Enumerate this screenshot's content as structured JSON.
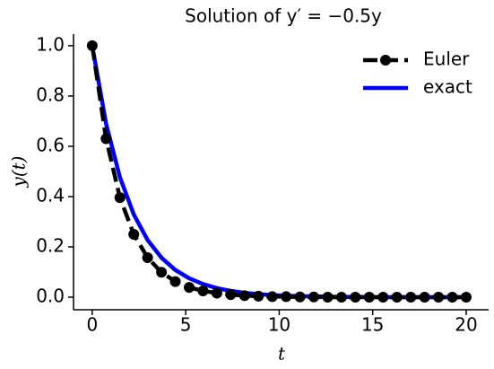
{
  "chart_data": {
    "type": "line",
    "title": "Solution of y′ = −0.5y",
    "xlabel": "t",
    "ylabel": "y(t)",
    "x": [
      0,
      0.741,
      1.481,
      2.222,
      2.963,
      3.704,
      4.444,
      5.185,
      5.926,
      6.667,
      7.407,
      8.148,
      8.889,
      9.63,
      10.37,
      11.111,
      11.852,
      12.593,
      13.333,
      14.074,
      14.815,
      15.556,
      16.296,
      17.037,
      17.778,
      18.519,
      19.259,
      20
    ],
    "series": [
      {
        "name": "Euler",
        "color": "#000000",
        "dashed": true,
        "markers": true,
        "values": [
          1,
          0.63,
          0.396,
          0.25,
          0.157,
          0.099,
          0.062,
          0.039,
          0.025,
          0.016,
          0.01,
          0.006,
          0.004,
          0.002,
          0.002,
          0.001,
          0.001,
          0,
          0,
          0,
          0,
          0,
          0,
          0,
          0,
          0,
          0,
          0
        ]
      },
      {
        "name": "exact",
        "color": "#0000ff",
        "dashed": false,
        "markers": false,
        "values": [
          1,
          0.69,
          0.477,
          0.329,
          0.227,
          0.157,
          0.108,
          0.075,
          0.052,
          0.036,
          0.025,
          0.017,
          0.012,
          0.008,
          0.006,
          0.004,
          0.003,
          0.002,
          0.001,
          0.001,
          0.001,
          0,
          0,
          0,
          0,
          0,
          0,
          0
        ]
      }
    ],
    "xlim": [
      -1,
      21.2
    ],
    "ylim": [
      -0.05,
      1.046
    ],
    "xticks": [
      0,
      5,
      10,
      15,
      20
    ],
    "yticks": [
      {
        "value": 0,
        "label": "0.0"
      },
      {
        "value": 0.2,
        "label": "0.2"
      },
      {
        "value": 0.4,
        "label": "0.4"
      },
      {
        "value": 0.6,
        "label": "0.6"
      },
      {
        "value": 0.8,
        "label": "0.8"
      },
      {
        "value": 1,
        "label": "1.0"
      }
    ],
    "legend": "upper right",
    "grid": false
  }
}
